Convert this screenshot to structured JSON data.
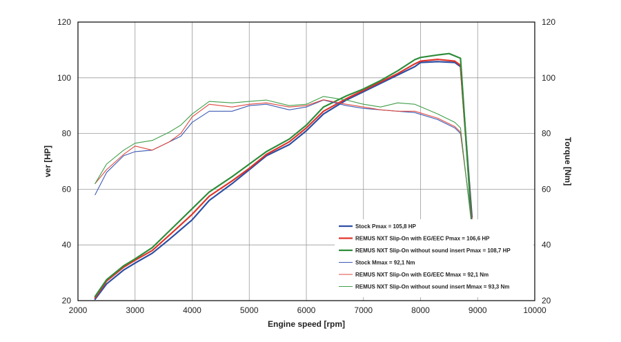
{
  "chart_data": {
    "type": "line",
    "title": "",
    "xlabel": "Engine speed [rpm]",
    "ylabel_left": "ver [HP]",
    "ylabel_right": "Torque [Nm]",
    "xlim": [
      2000,
      10000
    ],
    "ylim_left": [
      20,
      120
    ],
    "ylim_right": [
      20,
      120
    ],
    "x_ticks": [
      2000,
      3000,
      4000,
      5000,
      6000,
      7000,
      8000,
      9000,
      10000
    ],
    "y_ticks": [
      20,
      40,
      60,
      80,
      100,
      120
    ],
    "grid": true,
    "legend_position": "bottom-right inside plot",
    "series": [
      {
        "name": "Stock Pmax = 105,8 HP",
        "kind": "power",
        "color": "#2d4fa3",
        "width": 2.2,
        "x": [
          2300,
          2500,
          2800,
          3000,
          3300,
          3600,
          4000,
          4300,
          4700,
          5000,
          5300,
          5700,
          6000,
          6300,
          6700,
          7000,
          7300,
          7600,
          7900,
          8000,
          8300,
          8600,
          8700,
          8900
        ],
        "y": [
          20.5,
          26,
          31,
          33.5,
          37,
          42,
          49,
          56,
          62,
          67,
          72,
          76,
          81,
          87,
          92,
          95,
          98,
          101,
          104,
          105.5,
          105.8,
          105.5,
          104,
          50
        ]
      },
      {
        "name": "REMUS NXT Slip-On with EG/EEC Pmax =  106,6 HP",
        "kind": "power",
        "color": "#e0342a",
        "width": 2.2,
        "x": [
          2300,
          2500,
          2800,
          3000,
          3300,
          3600,
          4000,
          4300,
          4700,
          5000,
          5300,
          5700,
          6000,
          6300,
          6700,
          7000,
          7300,
          7600,
          7900,
          8000,
          8300,
          8600,
          8700,
          8900
        ],
        "y": [
          21,
          27,
          32,
          34.5,
          38,
          43.5,
          51,
          57.5,
          63,
          67.5,
          72.5,
          77,
          82,
          88,
          92.5,
          95.5,
          98.5,
          101.5,
          105,
          106,
          106.6,
          106,
          104.5,
          48
        ]
      },
      {
        "name": "REMUS NXT Slip-On without sound insert Pmax = 108,7 HP",
        "kind": "power",
        "color": "#2e8c3a",
        "width": 2.2,
        "x": [
          2300,
          2500,
          2800,
          3000,
          3300,
          3600,
          4000,
          4300,
          4700,
          5000,
          5300,
          5700,
          6000,
          6300,
          6700,
          7000,
          7300,
          7600,
          7900,
          8000,
          8300,
          8500,
          8700,
          8900
        ],
        "y": [
          21.5,
          27.5,
          32.5,
          35,
          39,
          45,
          53,
          59,
          64.5,
          69,
          73.5,
          78,
          83,
          89.5,
          93.5,
          96,
          99,
          102.5,
          106.5,
          107.3,
          108.2,
          108.7,
          107,
          46
        ]
      },
      {
        "name": "Stock Mmax = 92,1 Nm",
        "kind": "torque",
        "color": "#3b5bb5",
        "width": 1.1,
        "x": [
          2300,
          2500,
          2800,
          3000,
          3300,
          3600,
          3800,
          4000,
          4300,
          4700,
          5000,
          5300,
          5700,
          6000,
          6300,
          6700,
          7000,
          7300,
          7600,
          7900,
          8300,
          8600,
          8700,
          8900
        ],
        "y": [
          58,
          66,
          72,
          73.5,
          74,
          77,
          79,
          84,
          88,
          88,
          90,
          90.5,
          88.5,
          89.5,
          92,
          90,
          89,
          88.5,
          88,
          87.5,
          85,
          82,
          80,
          48
        ]
      },
      {
        "name": "REMUS NXT Slip-On with EG/EEC Mmax = 92,1 Nm",
        "kind": "torque",
        "color": "#e0483f",
        "width": 1.1,
        "x": [
          2300,
          2500,
          2800,
          3000,
          3300,
          3600,
          3800,
          4000,
          4300,
          4700,
          5000,
          5300,
          5700,
          6000,
          6300,
          6700,
          7000,
          7300,
          7600,
          7900,
          8300,
          8600,
          8700,
          8900
        ],
        "y": [
          62,
          67,
          72.5,
          75.5,
          74,
          77,
          80,
          86,
          90.5,
          89.5,
          90.5,
          91,
          89.5,
          90,
          92.1,
          90.5,
          89.5,
          88.5,
          88,
          88,
          85.5,
          82.5,
          80.5,
          47
        ]
      },
      {
        "name": "REMUS NXT Slip-On without sound insert Mmax = 93,3 Nm",
        "kind": "torque",
        "color": "#3f9e48",
        "width": 1.1,
        "x": [
          2300,
          2500,
          2800,
          3000,
          3300,
          3600,
          3800,
          4000,
          4300,
          4700,
          5000,
          5300,
          5700,
          6000,
          6300,
          6700,
          7000,
          7300,
          7600,
          7900,
          8300,
          8600,
          8700,
          8900
        ],
        "y": [
          62,
          69,
          74,
          76.5,
          77.5,
          80.5,
          83,
          87,
          91.5,
          91,
          91.5,
          92,
          90,
          90.5,
          93.3,
          92,
          90.5,
          89.5,
          91,
          90.5,
          87,
          84,
          82,
          46
        ]
      }
    ]
  }
}
